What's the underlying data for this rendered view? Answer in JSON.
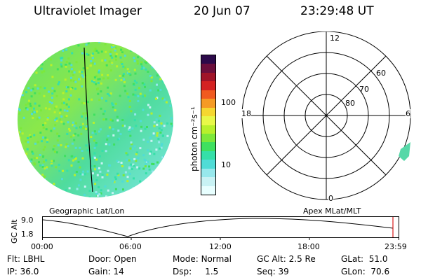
{
  "header": {
    "instrument": "Ultraviolet Imager",
    "date": "20 Jun 07",
    "time": "23:29:48 UT"
  },
  "geographic_panel": {
    "title": "Geographic Lat/Lon"
  },
  "colorbar": {
    "unit_label": "photon cm⁻²s⁻¹",
    "ticks": [
      "100",
      "10"
    ],
    "colors": [
      "#e8ffff",
      "#c8f2f4",
      "#97e8ec",
      "#50dcd6",
      "#35e0a8",
      "#3fe05f",
      "#7de83a",
      "#b8f02c",
      "#e8f848",
      "#f5d730",
      "#f59a24",
      "#f05a20",
      "#d42222",
      "#a01428",
      "#6b0f3c",
      "#2c0a4a"
    ]
  },
  "polar_plot": {
    "title": "Apex MLat/MLT",
    "mlt_labels": {
      "top": "12",
      "left": "18",
      "right": "6",
      "bottom": "0"
    },
    "lat_labels": [
      "60",
      "70",
      "80"
    ]
  },
  "altitude_plot": {
    "ylabel": "GC Alt",
    "yticks": [
      "9.0",
      "1.8"
    ],
    "xticks": [
      "00:00",
      "06:00",
      "12:00",
      "18:00",
      "23:59"
    ]
  },
  "status": {
    "row1": [
      {
        "label": "Flt:",
        "value": "LBHL"
      },
      {
        "label": "Door:",
        "value": "Open"
      },
      {
        "label": "Mode:",
        "value": "Normal"
      },
      {
        "label": "GC Alt:",
        "value": "2.5 Re"
      },
      {
        "label": "GLat:",
        "value": "51.0"
      }
    ],
    "row2": [
      {
        "label": "IP:",
        "value": "36.0"
      },
      {
        "label": "Gain:",
        "value": "14"
      },
      {
        "label": "Dsp:",
        "value": "1.5"
      },
      {
        "label": "Seq:",
        "value": "39"
      },
      {
        "label": "GLon:",
        "value": "70.6"
      }
    ]
  }
}
